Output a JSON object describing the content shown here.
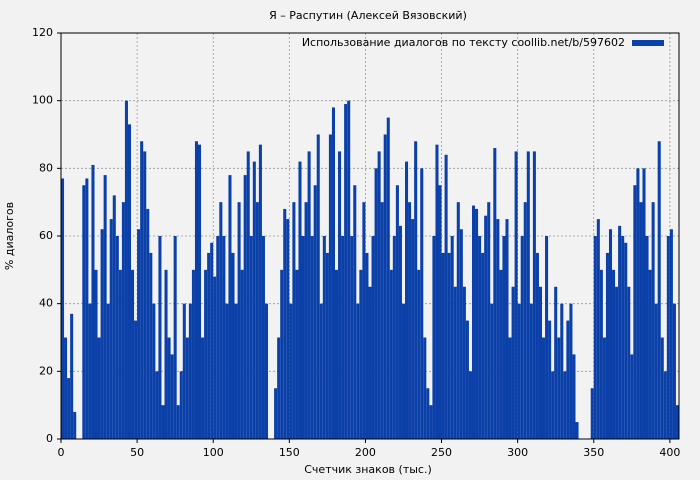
{
  "chart_data": {
    "type": "bar",
    "title": "Я – Распутин (Алексей Вязовский)",
    "xlabel": "Счетчик знаков (тыс.)",
    "ylabel": "% диалогов",
    "series": [
      {
        "name": "Использование диалогов по тексту coollib.net/b/597602",
        "color": "#0b40a8",
        "x": [
          0,
          2,
          4,
          6,
          8,
          10,
          12,
          14,
          16,
          18,
          20,
          22,
          24,
          26,
          28,
          30,
          32,
          34,
          36,
          38,
          40,
          42,
          44,
          46,
          48,
          50,
          52,
          54,
          56,
          58,
          60,
          62,
          64,
          66,
          68,
          70,
          72,
          74,
          76,
          78,
          80,
          82,
          84,
          86,
          88,
          90,
          92,
          94,
          96,
          98,
          100,
          102,
          104,
          106,
          108,
          110,
          112,
          114,
          116,
          118,
          120,
          122,
          124,
          126,
          128,
          130,
          132,
          134,
          136,
          138,
          140,
          142,
          144,
          146,
          148,
          150,
          152,
          154,
          156,
          158,
          160,
          162,
          164,
          166,
          168,
          170,
          172,
          174,
          176,
          178,
          180,
          182,
          184,
          186,
          188,
          190,
          192,
          194,
          196,
          198,
          200,
          202,
          204,
          206,
          208,
          210,
          212,
          214,
          216,
          218,
          220,
          222,
          224,
          226,
          228,
          230,
          232,
          234,
          236,
          238,
          240,
          242,
          244,
          246,
          248,
          250,
          252,
          254,
          256,
          258,
          260,
          262,
          264,
          266,
          268,
          270,
          272,
          274,
          276,
          278,
          280,
          282,
          284,
          286,
          288,
          290,
          292,
          294,
          296,
          298,
          300,
          302,
          304,
          306,
          308,
          310,
          312,
          314,
          316,
          318,
          320,
          322,
          324,
          326,
          328,
          330,
          332,
          334,
          336,
          338,
          340,
          342,
          344,
          346,
          348,
          350,
          352,
          354,
          356,
          358,
          360,
          362,
          364,
          366,
          368,
          370,
          372,
          374,
          376,
          378,
          380,
          382,
          384,
          386,
          388,
          390,
          392,
          394,
          396,
          398,
          400,
          402,
          404
        ],
        "values": [
          77,
          30,
          18,
          37,
          8,
          0,
          0,
          75,
          77,
          40,
          81,
          50,
          30,
          62,
          78,
          40,
          65,
          72,
          60,
          50,
          70,
          100,
          93,
          50,
          35,
          62,
          88,
          85,
          68,
          55,
          40,
          20,
          60,
          10,
          50,
          30,
          25,
          60,
          10,
          20,
          40,
          30,
          40,
          50,
          88,
          87,
          30,
          50,
          55,
          58,
          48,
          60,
          70,
          60,
          40,
          78,
          55,
          40,
          70,
          50,
          78,
          85,
          60,
          82,
          70,
          87,
          60,
          40,
          0,
          0,
          15,
          30,
          50,
          68,
          65,
          40,
          70,
          50,
          82,
          60,
          70,
          85,
          60,
          75,
          90,
          40,
          60,
          55,
          90,
          98,
          50,
          85,
          60,
          99,
          100,
          60,
          75,
          40,
          50,
          70,
          55,
          45,
          60,
          80,
          85,
          70,
          90,
          95,
          50,
          60,
          75,
          63,
          40,
          82,
          70,
          65,
          88,
          50,
          80,
          30,
          15,
          10,
          60,
          87,
          75,
          55,
          84,
          55,
          60,
          45,
          70,
          62,
          45,
          35,
          20,
          69,
          68,
          60,
          55,
          66,
          70,
          40,
          86,
          65,
          50,
          60,
          65,
          30,
          45,
          85,
          40,
          60,
          70,
          85,
          40,
          85,
          55,
          45,
          30,
          60,
          35,
          20,
          45,
          30,
          40,
          20,
          35,
          40,
          25,
          5,
          0,
          0,
          0,
          0,
          15,
          60,
          65,
          50,
          30,
          55,
          62,
          50,
          45,
          63,
          60,
          58,
          45,
          25,
          75,
          80,
          70,
          80,
          60,
          50,
          70,
          40,
          88,
          30,
          20,
          60,
          62,
          40,
          10
        ]
      }
    ],
    "xlim": [
      0,
      406
    ],
    "xticks": [
      0,
      50,
      100,
      150,
      200,
      250,
      300,
      350,
      400
    ],
    "ylim": [
      0,
      120
    ],
    "yticks": [
      0,
      20,
      40,
      60,
      80,
      100,
      120
    ],
    "grid": true,
    "legend": "upper right"
  }
}
